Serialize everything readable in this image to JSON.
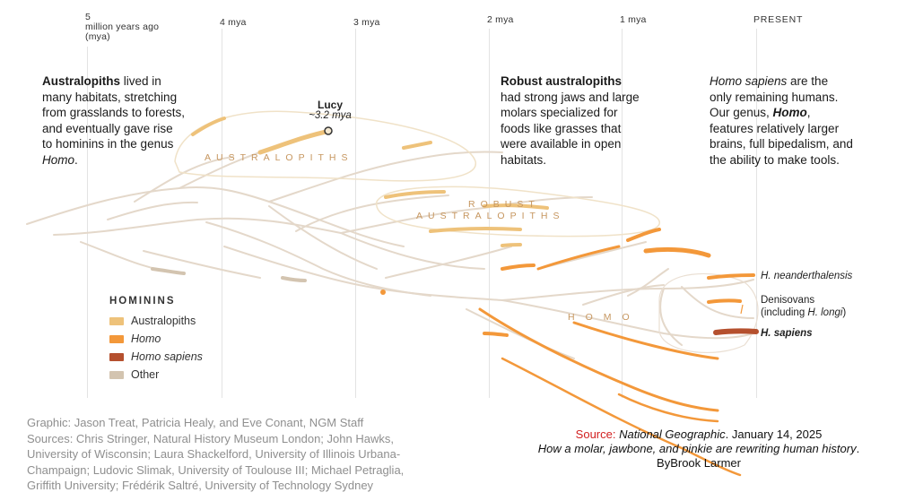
{
  "timeline": {
    "ticks": [
      {
        "label": "5",
        "sub": "million years ago",
        "sub2": "(mya)"
      },
      {
        "label": "4 mya"
      },
      {
        "label": "3 mya"
      },
      {
        "label": "2 mya"
      },
      {
        "label": "1 mya"
      },
      {
        "label": "PRESENT"
      }
    ]
  },
  "blocks": {
    "australopiths": {
      "bold": "Australopiths",
      "rest": " lived in many habitats, stretching from grasslands to forests, and eventually gave rise to hominins in the genus ",
      "em": "Homo",
      "end": "."
    },
    "robust": {
      "bold": "Robust australopiths",
      "rest": " had strong jaws and large molars specialized for foods like grasses that were available in open habitats."
    },
    "sapiens": {
      "em": "Homo sapiens",
      "rest1": " are the only remaining humans. Our genus, ",
      "boldem": "Homo",
      "rest2": ", features relatively larger brains, full bipedalism, and the ability to make tools."
    }
  },
  "lucy": {
    "name": "Lucy",
    "age": "~3.2 mya"
  },
  "group_labels": {
    "australopiths": "AUSTRALOPITHS",
    "robust_line1": "ROBUST",
    "robust_line2": "AUSTRALOPITHS",
    "homo": "HOMO"
  },
  "species": {
    "neanderthalensis": "H. neanderthalensis",
    "denisovans_1": "Denisovans",
    "denisovans_2a": "(including ",
    "denisovans_2b": "H. longi",
    "denisovans_2c": ")",
    "sapiens": "H. sapiens"
  },
  "legend": {
    "title": "HOMININS",
    "items": [
      {
        "label": "Australopiths",
        "color": "#eec27a"
      },
      {
        "label": "Homo",
        "color": "#f3983a"
      },
      {
        "label": "Homo sapiens",
        "color": "#b5502e"
      },
      {
        "label": "Other",
        "color": "#d3c4b0"
      }
    ]
  },
  "credits": {
    "line1": "Graphic: Jason Treat, Patricia Healy, and Eve Conant, NGM Staff",
    "line2": "Sources: Chris Stringer, Natural History Museum London; John Hawks,",
    "line3": "University of Wisconsin; Laura Shackelford, University of Illinois Urbana-",
    "line4": "Champaign; Ludovic Slimak, University of Toulouse III; Michael Petraglia,",
    "line5": "Griffith University; Frédérik Saltré, University of Technology Sydney"
  },
  "source": {
    "label": "Source: ",
    "publication": "National Geographic",
    "date": ". January 14, 2025",
    "title": "How a molar, jawbone, and pinkie are rewriting human history",
    "byline": ". ByBrook Larmer"
  },
  "colors": {
    "australopiths": "#eec27a",
    "homo": "#f3983a",
    "sapiens": "#b5502e",
    "other": "#d3c4b0"
  }
}
